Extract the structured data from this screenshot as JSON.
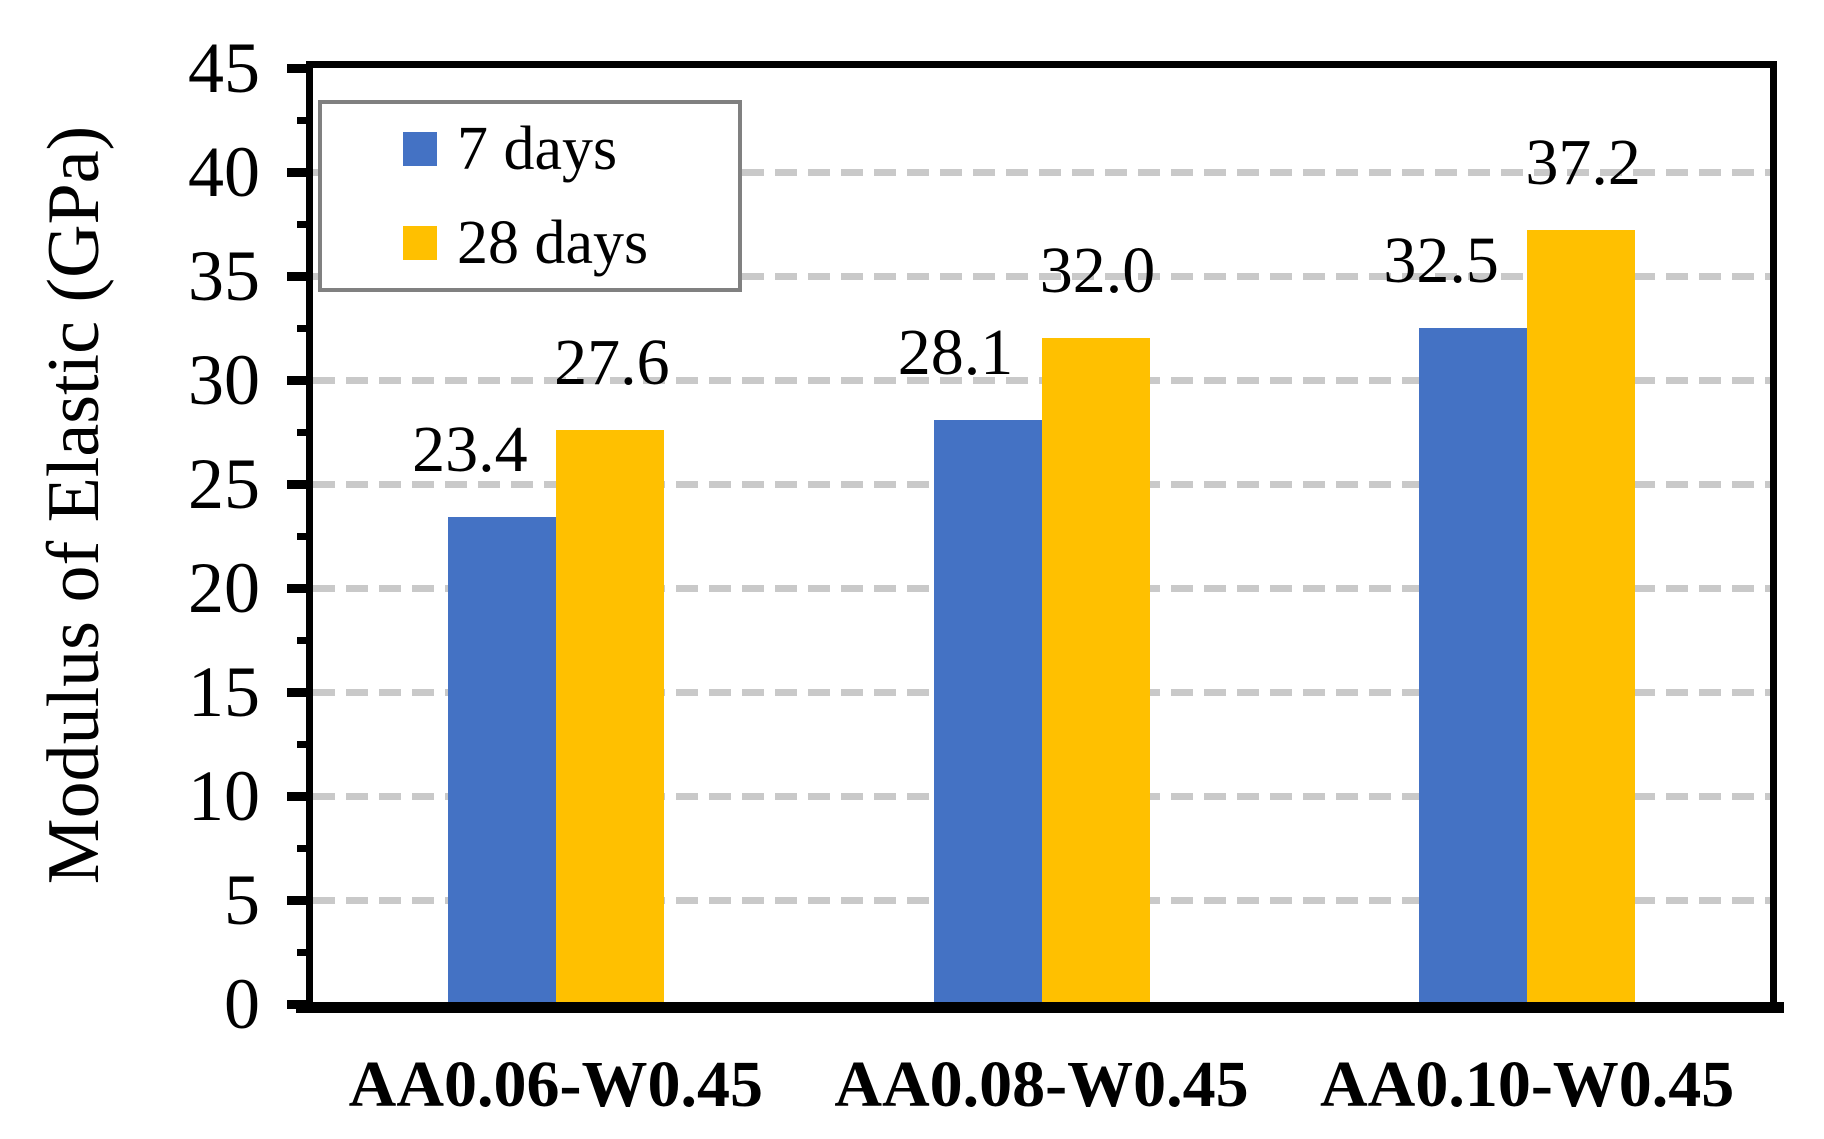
{
  "chart_data": {
    "type": "bar",
    "title": "",
    "xlabel": "",
    "ylabel": "Modulus of Elastic (GPa)",
    "categories": [
      "AA0.06-W0.45",
      "AA0.08-W0.45",
      "AA0.10-W0.45"
    ],
    "series": [
      {
        "name": "7 days",
        "color": "#4472C4",
        "values": [
          23.4,
          28.1,
          32.5
        ],
        "value_labels": [
          "23.4",
          "28.1",
          "32.5"
        ]
      },
      {
        "name": "28 days",
        "color": "#FFC000",
        "values": [
          27.6,
          32.0,
          37.2
        ],
        "value_labels": [
          "27.6",
          "32.0",
          "37.2"
        ]
      }
    ],
    "ylim": [
      0,
      45
    ],
    "ytick_interval": 5,
    "ytick_minor_interval": 2.5,
    "ytick_labels": [
      "0",
      "5",
      "10",
      "15",
      "20",
      "25",
      "30",
      "35",
      "40",
      "45"
    ],
    "grid": {
      "horizontal": true,
      "style": "dashed",
      "color": "#c9c9c9"
    },
    "axis_color": "#000000",
    "legend": {
      "position": "top-left-inside",
      "border_color": "#808080"
    }
  }
}
